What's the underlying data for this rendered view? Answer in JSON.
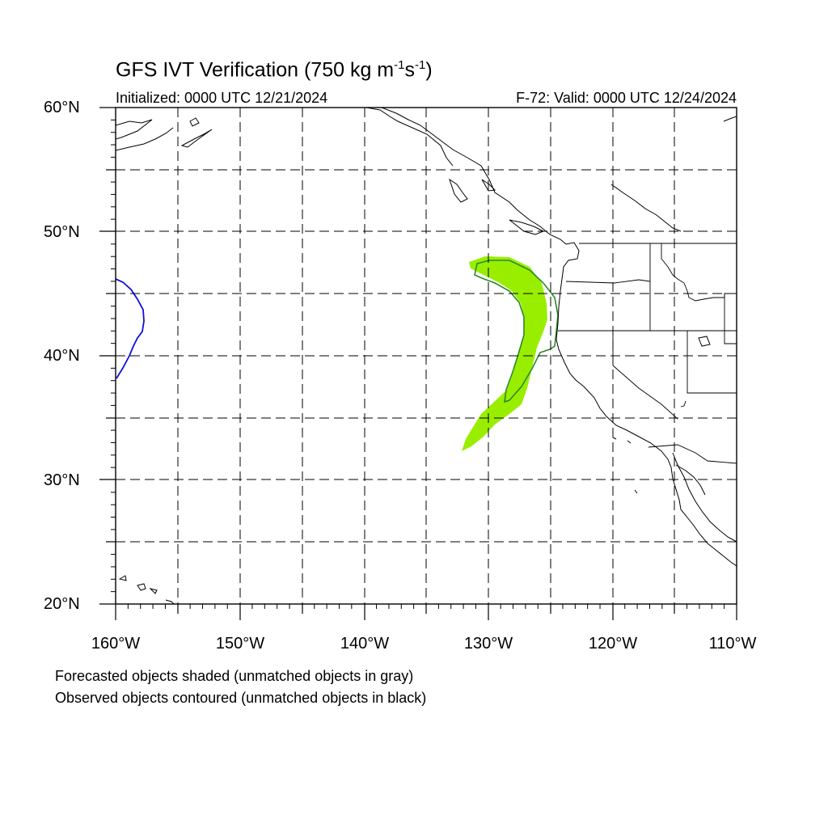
{
  "header": {
    "title_main": "GFS IVT Verification (750 kg m",
    "title_sup1": "-1",
    "title_mid": "s",
    "title_sup2": "-1",
    "title_end": ")",
    "initialized": "Initialized: 0000 UTC 12/21/2024",
    "valid": "F-72: Valid: 0000 UTC 12/24/2024"
  },
  "axes": {
    "lat_labels": [
      "60°N",
      "50°N",
      "40°N",
      "30°N",
      "20°N"
    ],
    "lon_labels": [
      "160°W",
      "150°W",
      "140°W",
      "130°W",
      "120°W",
      "110°W"
    ],
    "lat_range": [
      20,
      60
    ],
    "lon_range": [
      -160,
      -110
    ],
    "gridline_style": "dashed",
    "grid_interval_deg": 5
  },
  "objects": {
    "forecast_matched_color": "#99ee00",
    "observed_matched_color": "#2a8a2a",
    "unmatched_observed_color": "#1010dd"
  },
  "legend": {
    "line1": "Forecasted objects shaded (unmatched objects in gray)",
    "line2": "Observed objects contoured (unmatched objects in black)"
  }
}
